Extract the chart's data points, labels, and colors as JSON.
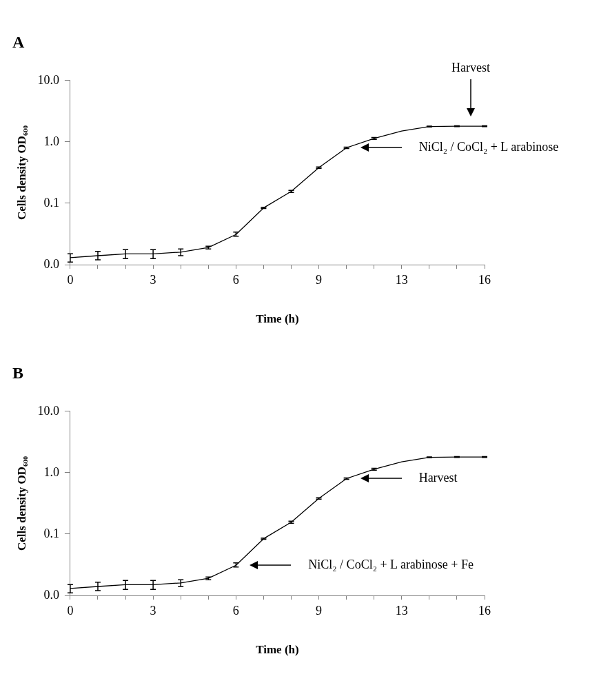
{
  "chart_data": [
    {
      "type": "line",
      "title": "A",
      "xlabel": "Time (h)",
      "ylabel": "Cells density OD₆₀₀",
      "categories": [
        "0",
        null,
        null,
        "3",
        null,
        null,
        "6",
        null,
        null,
        "9",
        null,
        null,
        "13",
        null,
        null,
        "16"
      ],
      "series": [
        {
          "color": "#000000",
          "values": [
            0.013,
            0.014,
            0.015,
            0.015,
            0.016,
            0.019,
            0.031,
            0.084,
            0.156,
            0.38,
            0.8,
            1.14,
            1.5,
            1.78,
            1.8,
            1.8
          ],
          "errors": [
            [
              0.011,
              0.015
            ],
            [
              0.012,
              0.0165
            ],
            [
              0.0125,
              0.0175
            ],
            [
              0.0125,
              0.0175
            ],
            [
              0.014,
              0.018
            ],
            [
              0.018,
              0.02
            ],
            [
              0.029,
              0.034
            ],
            [
              0.082,
              0.086
            ],
            [
              0.15,
              0.162
            ],
            [
              0.37,
              0.39
            ],
            [
              0.78,
              0.82
            ],
            [
              1.1,
              1.18
            ],
            null,
            [
              1.75,
              1.81
            ],
            [
              1.77,
              1.83
            ],
            [
              1.77,
              1.83
            ]
          ]
        }
      ],
      "log": "y",
      "ylim": [
        0.01,
        10
      ],
      "yticks": [
        {
          "value": 0.01,
          "label": "0.0"
        },
        0.1,
        {
          "value": 1,
          "label": "1.0"
        },
        {
          "value": 10,
          "label": "10.0"
        }
      ],
      "marker": "none",
      "line_style": "solid",
      "legend": false,
      "grid": false,
      "annotations": [
        "Harvest",
        "NiCl₂ / CoCl₂ + L arabinose"
      ]
    },
    {
      "type": "line",
      "title": "B",
      "xlabel": "Time (h)",
      "ylabel": "Cells density OD₆₀₀",
      "categories": [
        "0",
        null,
        null,
        "3",
        null,
        null,
        "6",
        null,
        null,
        "9",
        null,
        null,
        "13",
        null,
        null,
        "16"
      ],
      "series": [
        {
          "color": "#000000",
          "values": [
            0.013,
            0.014,
            0.015,
            0.015,
            0.016,
            0.019,
            0.031,
            0.084,
            0.156,
            0.38,
            0.8,
            1.14,
            1.5,
            1.78,
            1.8,
            1.8
          ],
          "errors": [
            [
              0.011,
              0.015
            ],
            [
              0.012,
              0.0165
            ],
            [
              0.0125,
              0.0175
            ],
            [
              0.0125,
              0.0175
            ],
            [
              0.014,
              0.018
            ],
            [
              0.018,
              0.02
            ],
            [
              0.029,
              0.034
            ],
            [
              0.082,
              0.086
            ],
            [
              0.15,
              0.162
            ],
            [
              0.37,
              0.39
            ],
            [
              0.78,
              0.82
            ],
            [
              1.1,
              1.18
            ],
            null,
            [
              1.75,
              1.81
            ],
            [
              1.77,
              1.83
            ],
            [
              1.77,
              1.83
            ]
          ]
        }
      ],
      "log": "y",
      "ylim": [
        0.01,
        10
      ],
      "yticks": [
        {
          "value": 0.01,
          "label": "0.0"
        },
        0.1,
        {
          "value": 1,
          "label": "1.0"
        },
        {
          "value": 10,
          "label": "10.0"
        }
      ],
      "marker": "none",
      "line_style": "solid",
      "legend": false,
      "grid": false,
      "annotations": [
        "Harvest",
        "NiCl₂ / CoCl₂ + L arabinose + Fe"
      ]
    }
  ]
}
